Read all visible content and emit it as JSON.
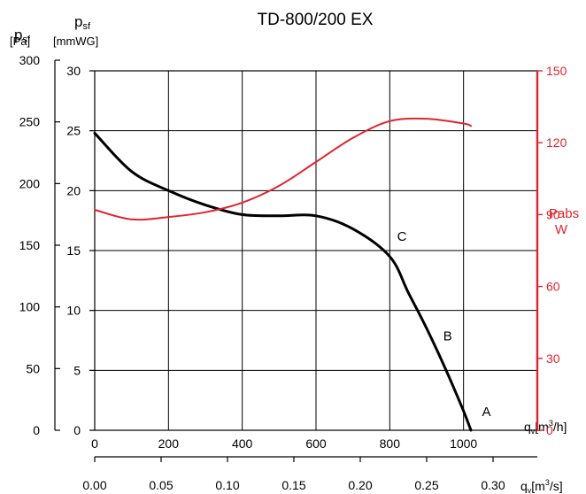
{
  "chart_data": {
    "type": "line",
    "title": "TD-800/200 EX",
    "axes": {
      "y_left_outer": {
        "label_symbol": "p",
        "label_sub": "sf",
        "unit": "[Pa]",
        "ylim": [
          0,
          300
        ],
        "ticks": [
          "0",
          "50",
          "100",
          "150",
          "200",
          "250",
          "300"
        ]
      },
      "y_left_inner": {
        "label_symbol": "p",
        "label_sub": "sf",
        "unit": "[mmWG]",
        "ylim": [
          0,
          30
        ],
        "ticks": [
          "0",
          "5",
          "10",
          "15",
          "20",
          "25",
          "30"
        ]
      },
      "y_right": {
        "label_top": "Pabs",
        "label_unit": "W",
        "ylim": [
          0,
          150
        ],
        "ticks": [
          "0",
          "30",
          "60",
          "90",
          "120",
          "150"
        ]
      },
      "x_primary": {
        "label_symbol": "q",
        "label_sub": "v",
        "unit_pre": "[m",
        "unit_sup": "3",
        "unit_post": "/h]",
        "xlim": [
          0,
          1200
        ],
        "ticks": [
          "0",
          "200",
          "400",
          "600",
          "800",
          "1000"
        ]
      },
      "x_secondary": {
        "label_symbol": "q",
        "label_sub": "v",
        "unit_pre": "[m",
        "unit_sup": "3",
        "unit_post": "/s]",
        "ticks": [
          "0.00",
          "0.05",
          "0.10",
          "0.15",
          "0.20",
          "0.25",
          "0.30"
        ]
      }
    },
    "series": [
      {
        "axis": "y_left_inner",
        "color": "#000000",
        "x": [
          0,
          100,
          200,
          300,
          400,
          500,
          600,
          700,
          800,
          850,
          900,
          950,
          1000,
          1020
        ],
        "y": [
          24.8,
          21.6,
          20.0,
          18.8,
          18.0,
          17.9,
          17.9,
          16.8,
          14.5,
          11.5,
          8.5,
          5.2,
          1.6,
          0
        ]
      },
      {
        "axis": "y_right",
        "color": "#e0242f",
        "x": [
          0,
          100,
          200,
          300,
          400,
          500,
          600,
          700,
          800,
          900,
          1000,
          1020
        ],
        "y": [
          92,
          88,
          89,
          91,
          95,
          102,
          112,
          122,
          129,
          130,
          128,
          127
        ]
      }
    ],
    "annotations": [
      {
        "text": "C",
        "x": 820,
        "y": 15.8
      },
      {
        "text": "B",
        "x": 945,
        "y": 7.5
      },
      {
        "text": "A",
        "x": 1050,
        "y": 1.2
      }
    ]
  }
}
